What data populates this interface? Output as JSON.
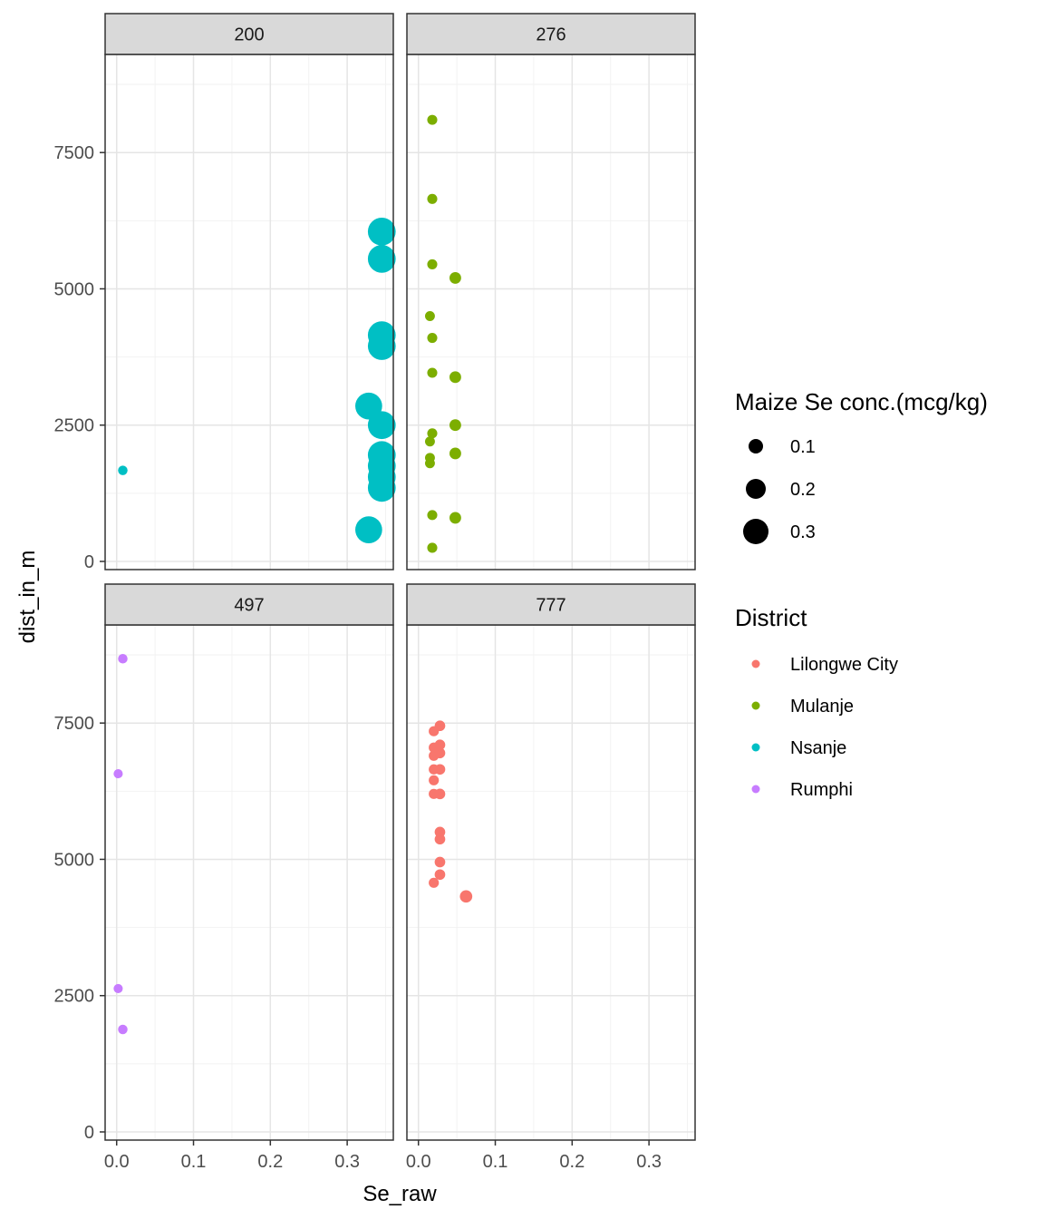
{
  "chart_data": {
    "type": "scatter",
    "facet_labels": [
      "200",
      "276",
      "497",
      "777"
    ],
    "xlabel": "Se_raw",
    "ylabel": "dist_in_m",
    "xlim": [
      -0.015,
      0.36
    ],
    "ylim": [
      -150,
      9300
    ],
    "x_ticks": [
      0.0,
      0.1,
      0.2,
      0.3
    ],
    "x_tick_labels": [
      "0.0",
      "0.1",
      "0.2",
      "0.3"
    ],
    "y_ticks": [
      0,
      2500,
      5000,
      7500
    ],
    "y_tick_labels": [
      "0",
      "2500",
      "5000",
      "7500"
    ],
    "grid": true,
    "legend_position": "right",
    "size_legend": {
      "title": "Maize Se conc.(mcg/kg)",
      "values": [
        0.1,
        0.2,
        0.3
      ],
      "labels": [
        "0.1",
        "0.2",
        "0.3"
      ]
    },
    "color_legend": {
      "title": "District",
      "entries": [
        {
          "name": "Lilongwe City",
          "color": "#F8766D"
        },
        {
          "name": "Mulanje",
          "color": "#7CAE00"
        },
        {
          "name": "Nsanje",
          "color": "#00BFC4"
        },
        {
          "name": "Rumphi",
          "color": "#C77CFF"
        }
      ]
    },
    "series": [
      {
        "facet": "200",
        "district": "Nsanje",
        "points": [
          {
            "x": 0.008,
            "y": 1670
          },
          {
            "x": 0.328,
            "y": 580
          },
          {
            "x": 0.345,
            "y": 1350
          },
          {
            "x": 0.345,
            "y": 1550
          },
          {
            "x": 0.345,
            "y": 1750
          },
          {
            "x": 0.345,
            "y": 1950
          },
          {
            "x": 0.345,
            "y": 2500
          },
          {
            "x": 0.328,
            "y": 2850
          },
          {
            "x": 0.345,
            "y": 3950
          },
          {
            "x": 0.345,
            "y": 4150
          },
          {
            "x": 0.345,
            "y": 5550
          },
          {
            "x": 0.345,
            "y": 6050
          }
        ]
      },
      {
        "facet": "276",
        "district": "Mulanje",
        "points": [
          {
            "x": 0.018,
            "y": 250
          },
          {
            "x": 0.018,
            "y": 850
          },
          {
            "x": 0.048,
            "y": 800
          },
          {
            "x": 0.015,
            "y": 1800
          },
          {
            "x": 0.015,
            "y": 1900
          },
          {
            "x": 0.048,
            "y": 1980
          },
          {
            "x": 0.015,
            "y": 2200
          },
          {
            "x": 0.018,
            "y": 2350
          },
          {
            "x": 0.048,
            "y": 2500
          },
          {
            "x": 0.048,
            "y": 3380
          },
          {
            "x": 0.018,
            "y": 3460
          },
          {
            "x": 0.018,
            "y": 4100
          },
          {
            "x": 0.015,
            "y": 4500
          },
          {
            "x": 0.048,
            "y": 5200
          },
          {
            "x": 0.018,
            "y": 5450
          },
          {
            "x": 0.018,
            "y": 6650
          },
          {
            "x": 0.018,
            "y": 8100
          }
        ]
      },
      {
        "facet": "497",
        "district": "Rumphi",
        "points": [
          {
            "x": 0.008,
            "y": 1880
          },
          {
            "x": 0.002,
            "y": 2630
          },
          {
            "x": 0.002,
            "y": 6570
          },
          {
            "x": 0.008,
            "y": 8680
          }
        ]
      },
      {
        "facet": "777",
        "district": "Lilongwe City",
        "points": [
          {
            "x": 0.062,
            "y": 4320
          },
          {
            "x": 0.02,
            "y": 4570
          },
          {
            "x": 0.028,
            "y": 4720
          },
          {
            "x": 0.028,
            "y": 4950
          },
          {
            "x": 0.028,
            "y": 5370
          },
          {
            "x": 0.028,
            "y": 5500
          },
          {
            "x": 0.02,
            "y": 6200
          },
          {
            "x": 0.028,
            "y": 6200
          },
          {
            "x": 0.02,
            "y": 6450
          },
          {
            "x": 0.02,
            "y": 6650
          },
          {
            "x": 0.028,
            "y": 6650
          },
          {
            "x": 0.02,
            "y": 6900
          },
          {
            "x": 0.028,
            "y": 6950
          },
          {
            "x": 0.02,
            "y": 7050
          },
          {
            "x": 0.028,
            "y": 7100
          },
          {
            "x": 0.02,
            "y": 7350
          },
          {
            "x": 0.028,
            "y": 7450
          }
        ]
      }
    ]
  }
}
